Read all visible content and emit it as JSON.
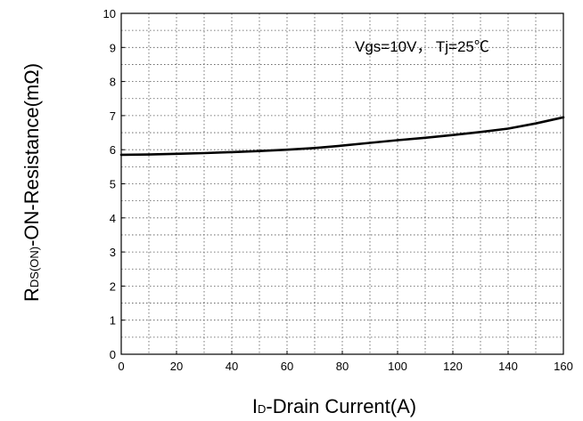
{
  "chart_data": {
    "type": "line",
    "title": "",
    "annotation": "Vgs=10V， Tj=25℃",
    "xlabel": {
      "prefix": "I",
      "subscript": "D",
      "rest": "-Drain Current(A)"
    },
    "ylabel": {
      "prefix": "R",
      "subscript": "DS(ON)",
      "rest": "-ON-Resistance(mΩ)"
    },
    "xlim": [
      0,
      160
    ],
    "ylim": [
      0,
      10
    ],
    "x_ticks": [
      0,
      20,
      40,
      60,
      80,
      100,
      120,
      140,
      160
    ],
    "y_ticks": [
      0,
      1,
      2,
      3,
      4,
      5,
      6,
      7,
      8,
      9,
      10
    ],
    "x_minor_step": 10,
    "y_minor_step": 0.5,
    "grid": true,
    "grid_style": "dotted",
    "series": [
      {
        "color": "#000000",
        "x": [
          0,
          10,
          20,
          30,
          40,
          50,
          60,
          70,
          80,
          90,
          100,
          110,
          120,
          130,
          140,
          150,
          160
        ],
        "y": [
          5.85,
          5.86,
          5.88,
          5.9,
          5.93,
          5.96,
          6.0,
          6.05,
          6.12,
          6.2,
          6.28,
          6.35,
          6.43,
          6.52,
          6.62,
          6.77,
          6.95
        ]
      }
    ]
  }
}
